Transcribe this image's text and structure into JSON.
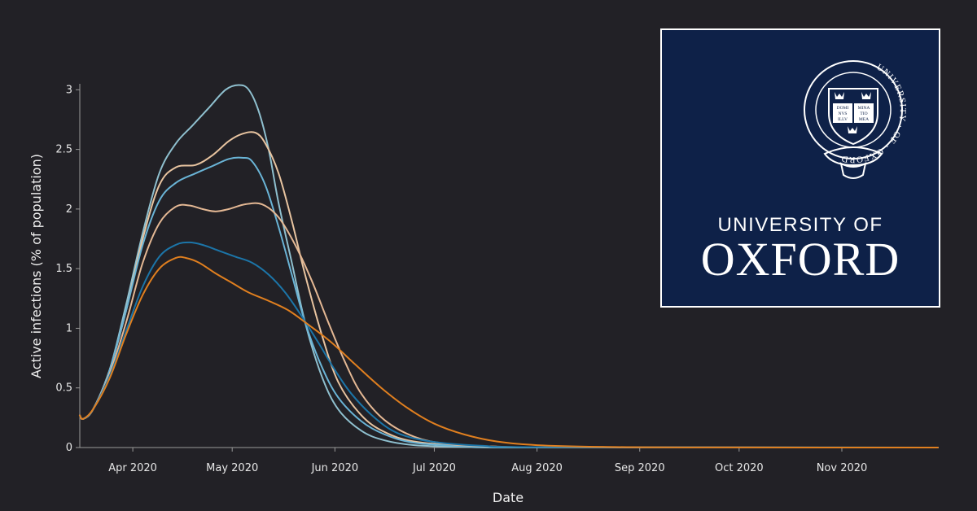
{
  "logo": {
    "line1": "UNIVERSITY OF",
    "line2": "OXFORD",
    "seal_ring_text": "UNIVERSITY · OF · OXFORD",
    "book_left": [
      "DOMI",
      "NVS",
      "ILLV"
    ],
    "book_right": [
      "MINA",
      "TIO",
      "MEA"
    ],
    "background_color": "#0e2148"
  },
  "chart_data": {
    "type": "line",
    "xlabel": "Date",
    "ylabel": "Active infections (% of population)",
    "x_ticks": [
      "Apr 2020",
      "May 2020",
      "Jun 2020",
      "Jul 2020",
      "Aug 2020",
      "Sep 2020",
      "Oct 2020",
      "Nov 2020"
    ],
    "x_tick_dates": [
      "2020-04-01",
      "2020-05-01",
      "2020-06-01",
      "2020-07-01",
      "2020-08-01",
      "2020-09-01",
      "2020-10-01",
      "2020-11-01"
    ],
    "xlim": [
      "2020-03-16",
      "2020-11-30"
    ],
    "y_ticks": [
      "0",
      "0.5",
      "1",
      "1.5",
      "2",
      "2.5",
      "3"
    ],
    "ylim": [
      0,
      3.05
    ],
    "grid": false,
    "series": [
      {
        "color": "#8fc0cf",
        "points": [
          [
            "2020-03-16",
            0.27
          ],
          [
            "2020-03-17",
            0.24
          ],
          [
            "2020-03-20",
            0.32
          ],
          [
            "2020-03-25",
            0.65
          ],
          [
            "2020-03-30",
            1.2
          ],
          [
            "2020-04-04",
            1.8
          ],
          [
            "2020-04-09",
            2.3
          ],
          [
            "2020-04-14",
            2.55
          ],
          [
            "2020-04-19",
            2.7
          ],
          [
            "2020-04-24",
            2.85
          ],
          [
            "2020-04-29",
            3.0
          ],
          [
            "2020-05-03",
            3.04
          ],
          [
            "2020-05-06",
            3.0
          ],
          [
            "2020-05-09",
            2.82
          ],
          [
            "2020-05-12",
            2.5
          ],
          [
            "2020-05-15",
            2.05
          ],
          [
            "2020-05-19",
            1.55
          ],
          [
            "2020-05-23",
            1.05
          ],
          [
            "2020-05-28",
            0.6
          ],
          [
            "2020-06-02",
            0.32
          ],
          [
            "2020-06-09",
            0.14
          ],
          [
            "2020-06-16",
            0.06
          ],
          [
            "2020-06-25",
            0.02
          ],
          [
            "2020-07-10",
            0.005
          ],
          [
            "2020-08-01",
            0.0
          ],
          [
            "2020-11-30",
            0.0
          ]
        ]
      },
      {
        "color": "#e8c4a0",
        "points": [
          [
            "2020-03-16",
            0.27
          ],
          [
            "2020-03-17",
            0.24
          ],
          [
            "2020-03-20",
            0.32
          ],
          [
            "2020-03-25",
            0.65
          ],
          [
            "2020-03-30",
            1.15
          ],
          [
            "2020-04-04",
            1.75
          ],
          [
            "2020-04-09",
            2.2
          ],
          [
            "2020-04-14",
            2.35
          ],
          [
            "2020-04-20",
            2.37
          ],
          [
            "2020-04-25",
            2.45
          ],
          [
            "2020-04-30",
            2.57
          ],
          [
            "2020-05-04",
            2.63
          ],
          [
            "2020-05-08",
            2.64
          ],
          [
            "2020-05-11",
            2.55
          ],
          [
            "2020-05-15",
            2.3
          ],
          [
            "2020-05-19",
            1.9
          ],
          [
            "2020-05-23",
            1.45
          ],
          [
            "2020-05-28",
            0.95
          ],
          [
            "2020-06-02",
            0.55
          ],
          [
            "2020-06-09",
            0.27
          ],
          [
            "2020-06-16",
            0.13
          ],
          [
            "2020-06-25",
            0.05
          ],
          [
            "2020-07-10",
            0.015
          ],
          [
            "2020-08-01",
            0.003
          ],
          [
            "2020-11-30",
            0.0
          ]
        ]
      },
      {
        "color": "#6ab4d6",
        "points": [
          [
            "2020-03-16",
            0.27
          ],
          [
            "2020-03-17",
            0.24
          ],
          [
            "2020-03-20",
            0.32
          ],
          [
            "2020-03-25",
            0.65
          ],
          [
            "2020-03-30",
            1.15
          ],
          [
            "2020-04-04",
            1.7
          ],
          [
            "2020-04-09",
            2.07
          ],
          [
            "2020-04-14",
            2.22
          ],
          [
            "2020-04-20",
            2.3
          ],
          [
            "2020-04-25",
            2.36
          ],
          [
            "2020-04-30",
            2.42
          ],
          [
            "2020-05-04",
            2.43
          ],
          [
            "2020-05-07",
            2.4
          ],
          [
            "2020-05-11",
            2.2
          ],
          [
            "2020-05-15",
            1.85
          ],
          [
            "2020-05-19",
            1.45
          ],
          [
            "2020-05-23",
            1.05
          ],
          [
            "2020-05-28",
            0.68
          ],
          [
            "2020-06-02",
            0.42
          ],
          [
            "2020-06-09",
            0.22
          ],
          [
            "2020-06-16",
            0.11
          ],
          [
            "2020-06-25",
            0.04
          ],
          [
            "2020-07-10",
            0.012
          ],
          [
            "2020-08-01",
            0.003
          ],
          [
            "2020-11-30",
            0.0
          ]
        ]
      },
      {
        "color": "#e4b894",
        "points": [
          [
            "2020-03-16",
            0.27
          ],
          [
            "2020-03-17",
            0.24
          ],
          [
            "2020-03-20",
            0.32
          ],
          [
            "2020-03-25",
            0.62
          ],
          [
            "2020-03-30",
            1.05
          ],
          [
            "2020-04-04",
            1.55
          ],
          [
            "2020-04-09",
            1.88
          ],
          [
            "2020-04-14",
            2.02
          ],
          [
            "2020-04-18",
            2.03
          ],
          [
            "2020-04-22",
            2.0
          ],
          [
            "2020-04-26",
            1.98
          ],
          [
            "2020-04-30",
            2.0
          ],
          [
            "2020-05-05",
            2.04
          ],
          [
            "2020-05-10",
            2.04
          ],
          [
            "2020-05-15",
            1.93
          ],
          [
            "2020-05-20",
            1.7
          ],
          [
            "2020-05-25",
            1.4
          ],
          [
            "2020-05-30",
            1.05
          ],
          [
            "2020-06-04",
            0.72
          ],
          [
            "2020-06-09",
            0.45
          ],
          [
            "2020-06-16",
            0.23
          ],
          [
            "2020-06-25",
            0.09
          ],
          [
            "2020-07-05",
            0.03
          ],
          [
            "2020-07-20",
            0.008
          ],
          [
            "2020-08-10",
            0.002
          ],
          [
            "2020-11-30",
            0.0
          ]
        ]
      },
      {
        "color": "#1c75a8",
        "points": [
          [
            "2020-03-16",
            0.27
          ],
          [
            "2020-03-17",
            0.24
          ],
          [
            "2020-03-20",
            0.32
          ],
          [
            "2020-03-25",
            0.6
          ],
          [
            "2020-03-30",
            0.98
          ],
          [
            "2020-04-04",
            1.35
          ],
          [
            "2020-04-09",
            1.6
          ],
          [
            "2020-04-14",
            1.7
          ],
          [
            "2020-04-18",
            1.72
          ],
          [
            "2020-04-22",
            1.7
          ],
          [
            "2020-04-27",
            1.65
          ],
          [
            "2020-05-02",
            1.6
          ],
          [
            "2020-05-07",
            1.55
          ],
          [
            "2020-05-12",
            1.45
          ],
          [
            "2020-05-17",
            1.3
          ],
          [
            "2020-05-22",
            1.1
          ],
          [
            "2020-05-27",
            0.88
          ],
          [
            "2020-06-01",
            0.65
          ],
          [
            "2020-06-06",
            0.45
          ],
          [
            "2020-06-13",
            0.25
          ],
          [
            "2020-06-20",
            0.12
          ],
          [
            "2020-06-30",
            0.05
          ],
          [
            "2020-07-15",
            0.015
          ],
          [
            "2020-08-05",
            0.003
          ],
          [
            "2020-11-30",
            0.0
          ]
        ]
      },
      {
        "color": "#e07f1f",
        "points": [
          [
            "2020-03-16",
            0.27
          ],
          [
            "2020-03-17",
            0.24
          ],
          [
            "2020-03-20",
            0.32
          ],
          [
            "2020-03-25",
            0.58
          ],
          [
            "2020-03-30",
            0.95
          ],
          [
            "2020-04-04",
            1.28
          ],
          [
            "2020-04-09",
            1.5
          ],
          [
            "2020-04-14",
            1.59
          ],
          [
            "2020-04-17",
            1.59
          ],
          [
            "2020-04-21",
            1.55
          ],
          [
            "2020-04-26",
            1.46
          ],
          [
            "2020-05-01",
            1.38
          ],
          [
            "2020-05-06",
            1.3
          ],
          [
            "2020-05-12",
            1.23
          ],
          [
            "2020-05-18",
            1.15
          ],
          [
            "2020-05-24",
            1.03
          ],
          [
            "2020-05-31",
            0.88
          ],
          [
            "2020-06-07",
            0.7
          ],
          [
            "2020-06-15",
            0.5
          ],
          [
            "2020-06-23",
            0.33
          ],
          [
            "2020-07-01",
            0.2
          ],
          [
            "2020-07-10",
            0.11
          ],
          [
            "2020-07-20",
            0.05
          ],
          [
            "2020-08-01",
            0.02
          ],
          [
            "2020-08-20",
            0.006
          ],
          [
            "2020-09-15",
            0.001
          ],
          [
            "2020-11-30",
            0.0
          ]
        ]
      }
    ]
  }
}
